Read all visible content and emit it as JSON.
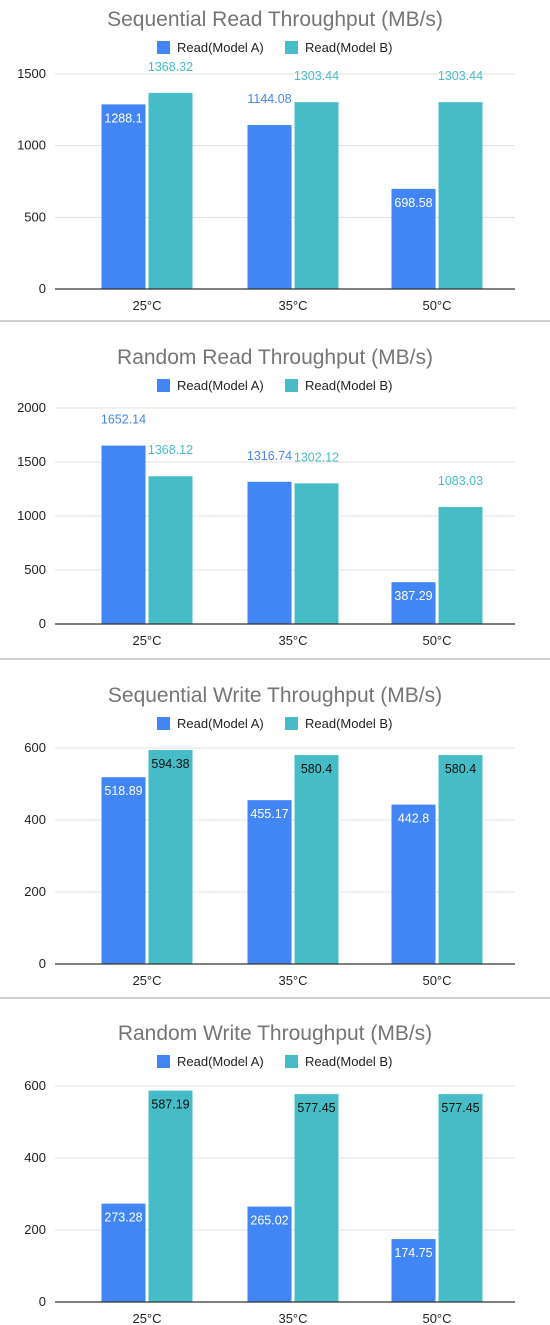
{
  "colors": {
    "modelA": "#4285f4",
    "modelB": "#46bdc6",
    "axis": "#333333",
    "grid": "#e0e0e0",
    "title": "#757575",
    "text": "#222222"
  },
  "chart_data": [
    {
      "type": "bar",
      "title": "Sequential Read Throughput (MB/s)",
      "categories": [
        "25°C",
        "35°C",
        "50°C"
      ],
      "series": [
        {
          "name": "Read(Model A)",
          "values": [
            1288.1,
            1144.08,
            698.58
          ],
          "labels": [
            "1288.1",
            "1144.08",
            "698.58"
          ]
        },
        {
          "name": "Read(Model B)",
          "values": [
            1368.32,
            1303.44,
            1303.44
          ],
          "labels": [
            "1368.32",
            "1303.44",
            "1303.44"
          ]
        }
      ],
      "ylim": [
        0,
        1500
      ],
      "yticks": [
        0,
        500,
        1000,
        1500
      ],
      "legend": "top"
    },
    {
      "type": "bar",
      "title": "Random Read Throughput (MB/s)",
      "categories": [
        "25°C",
        "35°C",
        "50°C"
      ],
      "series": [
        {
          "name": "Read(Model A)",
          "values": [
            1652.14,
            1316.74,
            387.29
          ],
          "labels": [
            "1652.14",
            "1316.74",
            "387.29"
          ]
        },
        {
          "name": "Read(Model B)",
          "values": [
            1368.12,
            1302.12,
            1083.03
          ],
          "labels": [
            "1368.12",
            "1302.12",
            "1083.03"
          ]
        }
      ],
      "ylim": [
        0,
        2000
      ],
      "yticks": [
        0,
        500,
        1000,
        1500,
        2000
      ],
      "legend": "top"
    },
    {
      "type": "bar",
      "title": "Sequential Write Throughput (MB/s)",
      "categories": [
        "25°C",
        "35°C",
        "50°C"
      ],
      "series": [
        {
          "name": "Read(Model A)",
          "values": [
            518.89,
            455.17,
            442.8
          ],
          "labels": [
            "518.89",
            "455.17",
            "442.8"
          ]
        },
        {
          "name": "Read(Model B)",
          "values": [
            594.38,
            580.4,
            580.4
          ],
          "labels": [
            "594.38",
            "580.4",
            "580.4"
          ]
        }
      ],
      "ylim": [
        0,
        600
      ],
      "yticks": [
        0,
        200,
        400,
        600
      ],
      "legend": "top"
    },
    {
      "type": "bar",
      "title": "Random Write Throughput (MB/s)",
      "categories": [
        "25°C",
        "35°C",
        "50°C"
      ],
      "series": [
        {
          "name": "Read(Model A)",
          "values": [
            273.28,
            265.02,
            174.75
          ],
          "labels": [
            "273.28",
            "265.02",
            "174.75"
          ]
        },
        {
          "name": "Read(Model B)",
          "values": [
            587.19,
            577.45,
            577.45
          ],
          "labels": [
            "587.19",
            "577.45",
            "577.45"
          ]
        }
      ],
      "ylim": [
        0,
        600
      ],
      "yticks": [
        0,
        200,
        400,
        600
      ],
      "legend": "top"
    }
  ]
}
